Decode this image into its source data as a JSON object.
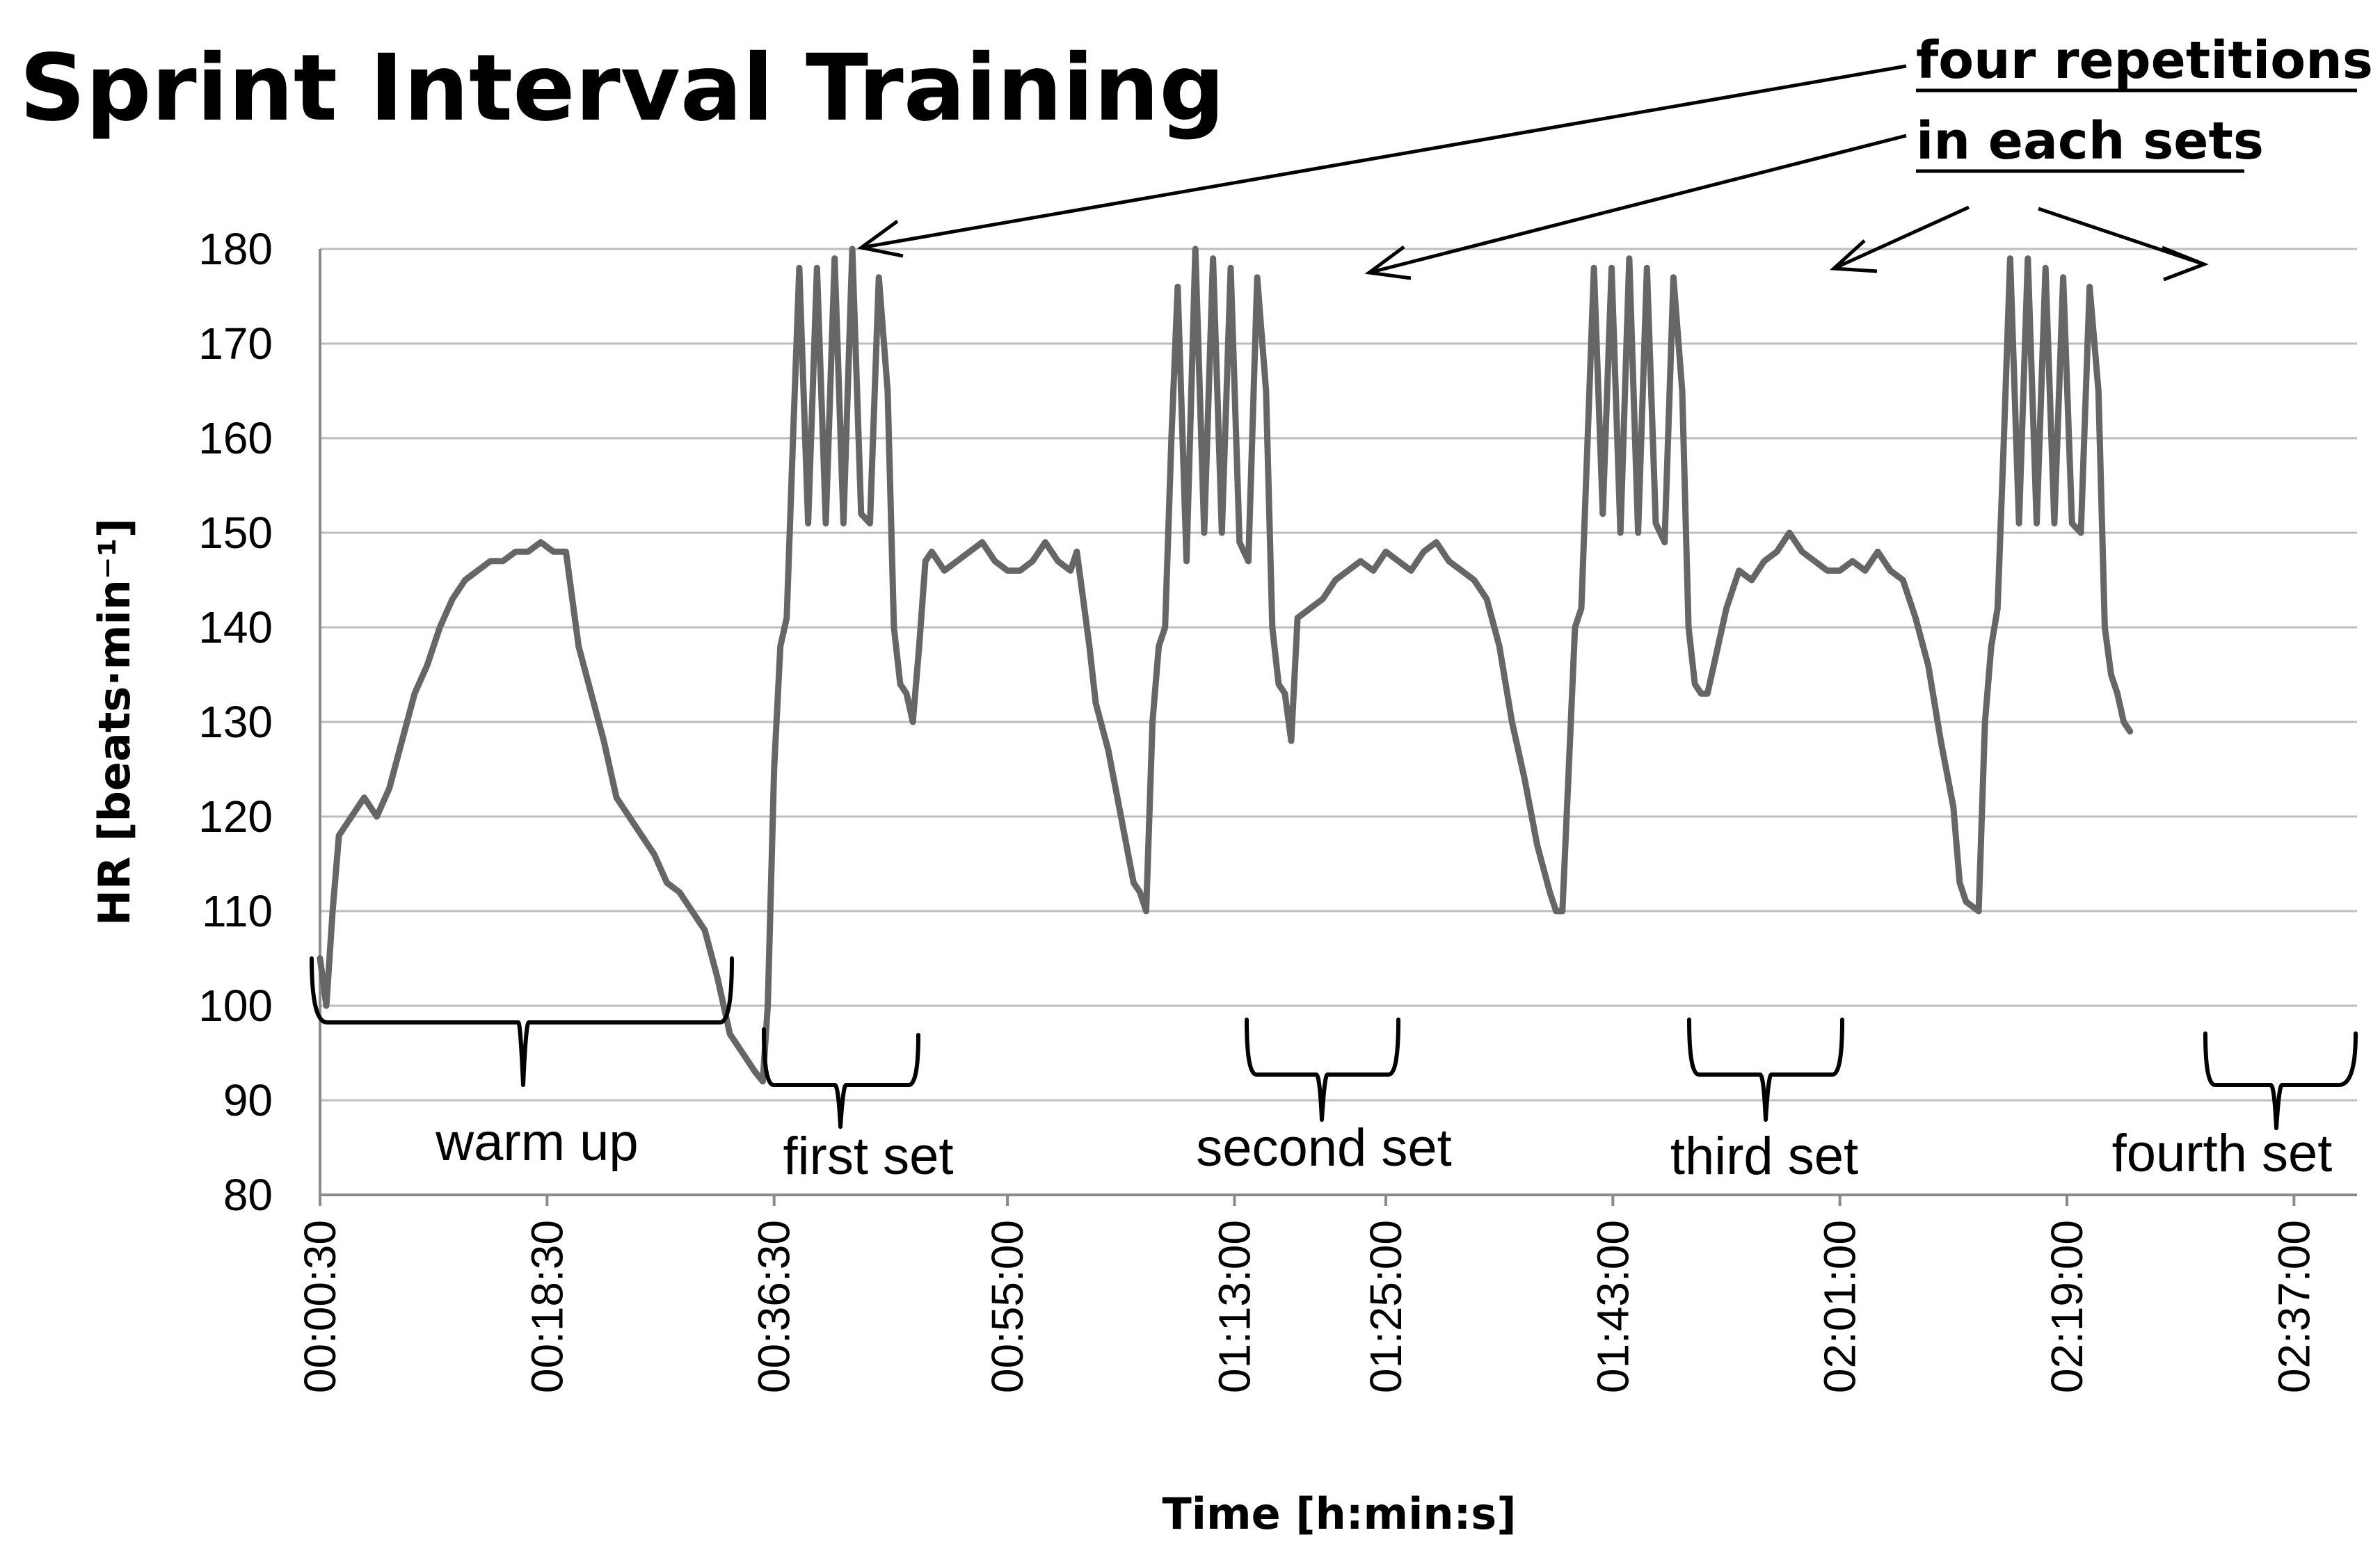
{
  "chart_data": {
    "type": "line",
    "title": "Sprint Interval Training",
    "xlabel": "Time [h:min:s]",
    "ylabel": "HR [beats·min⁻¹]",
    "ylim": [
      80,
      180
    ],
    "xlim_minutes": [
      0.5,
      162
    ],
    "yticks": [
      80,
      90,
      100,
      110,
      120,
      130,
      140,
      150,
      160,
      170,
      180
    ],
    "xticks": [
      {
        "label": "00:00:30",
        "minutes": 0.5
      },
      {
        "label": "00:18:30",
        "minutes": 18.5
      },
      {
        "label": "00:36:30",
        "minutes": 36.5
      },
      {
        "label": "00:55:00",
        "minutes": 55
      },
      {
        "label": "01:13:00",
        "minutes": 73
      },
      {
        "label": "01:25:00",
        "minutes": 85
      },
      {
        "label": "01:43:00",
        "minutes": 103
      },
      {
        "label": "02:01:00",
        "minutes": 121
      },
      {
        "label": "02:19:00",
        "minutes": 139
      },
      {
        "label": "02:37:00",
        "minutes": 157
      }
    ],
    "grid": true,
    "series": [
      {
        "name": "",
        "color": "#666666",
        "points": [
          [
            0.5,
            105
          ],
          [
            1,
            100
          ],
          [
            1.5,
            110
          ],
          [
            2,
            118
          ],
          [
            3,
            120
          ],
          [
            4,
            122
          ],
          [
            5,
            120
          ],
          [
            6,
            123
          ],
          [
            7,
            128
          ],
          [
            8,
            133
          ],
          [
            9,
            136
          ],
          [
            10,
            140
          ],
          [
            11,
            143
          ],
          [
            12,
            145
          ],
          [
            13,
            146
          ],
          [
            14,
            147
          ],
          [
            15,
            147
          ],
          [
            16,
            148
          ],
          [
            17,
            148
          ],
          [
            18,
            149
          ],
          [
            19,
            148
          ],
          [
            20,
            148
          ],
          [
            21,
            138
          ],
          [
            22,
            133
          ],
          [
            23,
            128
          ],
          [
            24,
            122
          ],
          [
            25,
            120
          ],
          [
            26,
            118
          ],
          [
            27,
            116
          ],
          [
            28,
            113
          ],
          [
            29,
            112
          ],
          [
            30,
            110
          ],
          [
            31,
            108
          ],
          [
            32,
            103
          ],
          [
            33,
            97
          ],
          [
            34,
            95
          ],
          [
            35,
            93
          ],
          [
            35.6,
            92
          ],
          [
            36,
            100
          ],
          [
            36.5,
            125
          ],
          [
            37,
            138
          ],
          [
            37.5,
            141
          ],
          [
            38,
            160
          ],
          [
            38.5,
            178
          ],
          [
            39.2,
            151
          ],
          [
            39.9,
            178
          ],
          [
            40.6,
            151
          ],
          [
            41.3,
            179
          ],
          [
            42,
            151
          ],
          [
            42.7,
            180
          ],
          [
            43.4,
            152
          ],
          [
            44.1,
            151
          ],
          [
            44.8,
            177
          ],
          [
            45.5,
            165
          ],
          [
            46,
            140
          ],
          [
            46.5,
            134
          ],
          [
            47,
            133
          ],
          [
            47.5,
            130
          ],
          [
            48,
            138
          ],
          [
            48.5,
            147
          ],
          [
            49,
            148
          ],
          [
            50,
            146
          ],
          [
            51,
            147
          ],
          [
            52,
            148
          ],
          [
            53,
            149
          ],
          [
            54,
            147
          ],
          [
            55,
            146
          ],
          [
            56,
            146
          ],
          [
            57,
            147
          ],
          [
            58,
            149
          ],
          [
            59,
            147
          ],
          [
            60,
            146
          ],
          [
            60.5,
            148
          ],
          [
            61,
            143
          ],
          [
            61.5,
            138
          ],
          [
            62,
            132
          ],
          [
            63,
            127
          ],
          [
            64,
            120
          ],
          [
            65,
            113
          ],
          [
            65.5,
            112
          ],
          [
            66,
            110
          ],
          [
            66.5,
            130
          ],
          [
            67,
            138
          ],
          [
            67.5,
            140
          ],
          [
            68,
            160
          ],
          [
            68.5,
            176
          ],
          [
            69.2,
            147
          ],
          [
            69.9,
            180
          ],
          [
            70.6,
            150
          ],
          [
            71.3,
            179
          ],
          [
            72,
            150
          ],
          [
            72.7,
            178
          ],
          [
            73.4,
            149
          ],
          [
            74.1,
            147
          ],
          [
            74.8,
            177
          ],
          [
            75.5,
            165
          ],
          [
            76,
            140
          ],
          [
            76.5,
            134
          ],
          [
            77,
            133
          ],
          [
            77.5,
            128
          ],
          [
            78,
            141
          ],
          [
            79,
            142
          ],
          [
            80,
            143
          ],
          [
            81,
            145
          ],
          [
            82,
            146
          ],
          [
            83,
            147
          ],
          [
            84,
            146
          ],
          [
            85,
            148
          ],
          [
            86,
            147
          ],
          [
            87,
            146
          ],
          [
            88,
            148
          ],
          [
            89,
            149
          ],
          [
            90,
            147
          ],
          [
            91,
            146
          ],
          [
            92,
            145
          ],
          [
            93,
            143
          ],
          [
            94,
            138
          ],
          [
            95,
            130
          ],
          [
            96,
            124
          ],
          [
            97,
            117
          ],
          [
            98,
            112
          ],
          [
            98.5,
            110
          ],
          [
            99,
            110
          ],
          [
            99.5,
            125
          ],
          [
            100,
            140
          ],
          [
            100.5,
            142
          ],
          [
            101,
            160
          ],
          [
            101.5,
            178
          ],
          [
            102.2,
            152
          ],
          [
            102.9,
            178
          ],
          [
            103.6,
            150
          ],
          [
            104.3,
            179
          ],
          [
            105,
            150
          ],
          [
            105.7,
            178
          ],
          [
            106.4,
            151
          ],
          [
            107.1,
            149
          ],
          [
            107.8,
            177
          ],
          [
            108.5,
            165
          ],
          [
            109,
            140
          ],
          [
            109.5,
            134
          ],
          [
            110,
            133
          ],
          [
            110.5,
            133
          ],
          [
            111,
            136
          ],
          [
            112,
            142
          ],
          [
            113,
            146
          ],
          [
            114,
            145
          ],
          [
            115,
            147
          ],
          [
            116,
            148
          ],
          [
            117,
            150
          ],
          [
            118,
            148
          ],
          [
            119,
            147
          ],
          [
            120,
            146
          ],
          [
            121,
            146
          ],
          [
            122,
            147
          ],
          [
            123,
            146
          ],
          [
            124,
            148
          ],
          [
            125,
            146
          ],
          [
            126,
            145
          ],
          [
            127,
            141
          ],
          [
            128,
            136
          ],
          [
            129,
            128
          ],
          [
            130,
            121
          ],
          [
            130.5,
            113
          ],
          [
            131,
            111
          ],
          [
            132,
            110
          ],
          [
            132.5,
            130
          ],
          [
            133,
            138
          ],
          [
            133.5,
            142
          ],
          [
            134,
            160
          ],
          [
            134.5,
            179
          ],
          [
            135.2,
            151
          ],
          [
            135.9,
            179
          ],
          [
            136.6,
            151
          ],
          [
            137.3,
            178
          ],
          [
            138,
            151
          ],
          [
            138.7,
            177
          ],
          [
            139.4,
            151
          ],
          [
            140.1,
            150
          ],
          [
            140.8,
            176
          ],
          [
            141.5,
            165
          ],
          [
            142,
            140
          ],
          [
            142.5,
            135
          ],
          [
            143,
            133
          ],
          [
            143.5,
            130
          ],
          [
            144,
            129
          ]
        ]
      }
    ],
    "annotations": {
      "top_line1": "four repetitions",
      "top_line2": "in each sets",
      "phases": [
        "warm up",
        "first set",
        "second set",
        "third set",
        "fourth set"
      ]
    }
  }
}
